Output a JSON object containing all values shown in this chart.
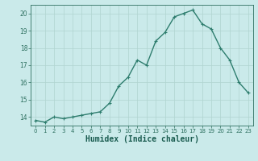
{
  "x": [
    0,
    1,
    2,
    3,
    4,
    5,
    6,
    7,
    8,
    9,
    10,
    11,
    12,
    13,
    14,
    15,
    16,
    17,
    18,
    19,
    20,
    21,
    22,
    23
  ],
  "y": [
    13.8,
    13.7,
    14.0,
    13.9,
    14.0,
    14.1,
    14.2,
    14.3,
    14.8,
    15.8,
    16.3,
    17.3,
    17.0,
    18.4,
    18.9,
    19.8,
    20.0,
    20.2,
    19.4,
    19.1,
    18.0,
    17.3,
    16.0,
    15.4
  ],
  "line_color": "#2e7d6e",
  "marker": "+",
  "bg_color": "#caeaea",
  "grid_color": "#b0d4d0",
  "tick_color": "#2e7060",
  "xlabel": "Humidex (Indice chaleur)",
  "xlabel_color": "#1a5c50",
  "ylim": [
    13.5,
    20.5
  ],
  "yticks": [
    14,
    15,
    16,
    17,
    18,
    19,
    20
  ],
  "xticks": [
    0,
    1,
    2,
    3,
    4,
    5,
    6,
    7,
    8,
    9,
    10,
    11,
    12,
    13,
    14,
    15,
    16,
    17,
    18,
    19,
    20,
    21,
    22,
    23
  ],
  "line_width": 1.0,
  "marker_size": 3.5
}
